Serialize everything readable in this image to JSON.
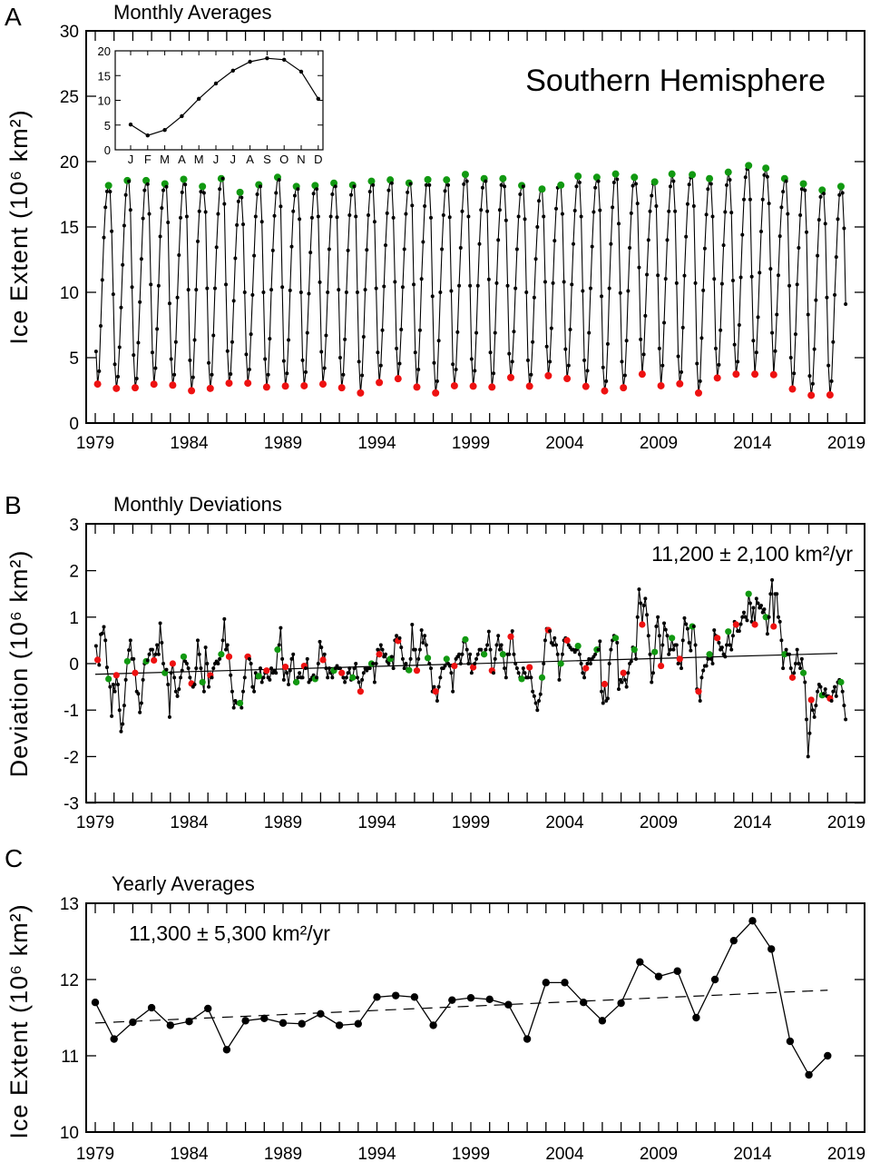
{
  "colors": {
    "line": "#000000",
    "max_marker": "#119911",
    "min_marker": "#ee1111"
  },
  "chart_data": [
    {
      "id": "A",
      "type": "line",
      "panel_label": "A",
      "title": "Monthly Averages",
      "annotation": "Southern Hemisphere",
      "ylabel": "Ice Extent (10⁶ km²)",
      "ylim": [
        0,
        30
      ],
      "yticks": [
        "0",
        "5",
        "10",
        "15",
        "20",
        "25",
        "30"
      ],
      "xlim": [
        1979,
        2019
      ],
      "xticks": [
        "1979",
        "1984",
        "1989",
        "1994",
        "1999",
        "2004",
        "2009",
        "2014",
        "2019"
      ],
      "markers": "yearly maximum green, yearly minimum red",
      "values_are": "climatology + monthly deviation"
    },
    {
      "id": "A-inset",
      "type": "line",
      "categories": [
        "J",
        "F",
        "M",
        "A",
        "M",
        "J",
        "J",
        "A",
        "S",
        "O",
        "N",
        "D"
      ],
      "values": [
        5.1,
        2.9,
        4.0,
        6.8,
        10.3,
        13.4,
        16.0,
        17.8,
        18.5,
        18.2,
        15.8,
        10.3
      ],
      "ylim": [
        0,
        20
      ],
      "yticks": [
        "0",
        "5",
        "10",
        "15",
        "20"
      ]
    },
    {
      "id": "B",
      "type": "line",
      "panel_label": "B",
      "title": "Monthly Deviations",
      "annotation": "11,200 ± 2,100 km²/yr",
      "ylabel": "Deviation (10⁶ km²)",
      "ylim": [
        -3,
        3
      ],
      "yticks": [
        "-3",
        "-2",
        "-1",
        "0",
        "1",
        "2",
        "3"
      ],
      "xticks": [
        "1979",
        "1984",
        "1989",
        "1994",
        "1999",
        "2004",
        "2009",
        "2014",
        "2019"
      ],
      "trend": {
        "start": [
          1979,
          -0.23
        ],
        "end": [
          2019,
          0.22
        ]
      },
      "years": [
        1979,
        1980,
        1981,
        1982,
        1983,
        1984,
        1985,
        1986,
        1987,
        1988,
        1989,
        1990,
        1991,
        1992,
        1993,
        1994,
        1995,
        1996,
        1997,
        1998,
        1999,
        2000,
        2001,
        2002,
        2003,
        2004,
        2005,
        2006,
        2007,
        2008,
        2009,
        2010,
        2011,
        2012,
        2013,
        2014,
        2015,
        2016,
        2017,
        2018
      ],
      "monthly_deviations": [
        [
          0.38,
          0.08,
          -0.03,
          0.63,
          0.65,
          0.79,
          0.5,
          -0.08,
          -0.33,
          -0.5,
          -1.13,
          -0.45
        ],
        [
          -0.6,
          -0.25,
          -0.45,
          -1.0,
          -1.46,
          -1.3,
          -0.9,
          -0.35,
          0.05,
          0.29,
          0.5,
          0.1
        ],
        [
          0.1,
          -0.2,
          -0.6,
          -0.65,
          -1.05,
          -0.85,
          -0.35,
          0.0,
          0.05,
          0.07,
          0.2,
          0.3
        ],
        [
          0.3,
          0.07,
          0.2,
          0.4,
          0.2,
          0.87,
          0.45,
          0.0,
          -0.2,
          -0.13,
          -0.45,
          -1.15
        ],
        [
          -0.2,
          0.0,
          -0.3,
          -0.6,
          -0.7,
          -0.55,
          -0.3,
          -0.15,
          0.15,
          0.05,
          0.0,
          -0.1
        ],
        [
          -0.3,
          -0.43,
          -0.5,
          -0.45,
          -0.1,
          0.5,
          0.2,
          -0.1,
          -0.4,
          -0.6,
          0.35,
          0.0
        ],
        [
          -0.5,
          -0.25,
          -0.3,
          -0.1,
          0.0,
          0.05,
          0.0,
          0.1,
          0.2,
          0.5,
          0.96,
          0.3
        ],
        [
          0.4,
          0.15,
          -0.25,
          -0.6,
          -0.95,
          -0.8,
          -0.85,
          -0.85,
          -0.85,
          -0.95,
          -0.6,
          -0.3
        ],
        [
          0.15,
          0.15,
          0.1,
          0.0,
          -0.5,
          -0.6,
          -0.2,
          -0.3,
          -0.27,
          -0.1,
          -0.4,
          -0.3
        ],
        [
          -0.2,
          -0.15,
          -0.3,
          -0.35,
          -0.1,
          -0.2,
          -0.15,
          -0.2,
          0.3,
          0.4,
          0.77,
          0.1
        ],
        [
          -0.35,
          -0.07,
          -0.2,
          -0.45,
          -0.15,
          0.1,
          0.2,
          -0.4,
          -0.4,
          -0.3,
          -0.2,
          -0.3
        ],
        [
          -0.3,
          -0.05,
          -0.1,
          0.1,
          -0.4,
          -0.35,
          -0.3,
          -0.25,
          -0.33,
          -0.3,
          0.0,
          0.47
        ],
        [
          0.35,
          0.08,
          0.2,
          -0.1,
          -0.3,
          -0.1,
          -0.2,
          -0.3,
          -0.15,
          -0.1,
          -0.05,
          -0.1
        ],
        [
          -0.1,
          -0.2,
          -0.3,
          -0.4,
          -0.3,
          -0.2,
          -0.1,
          -0.35,
          -0.3,
          -0.1,
          0.0,
          -0.3
        ],
        [
          -0.4,
          -0.6,
          -0.35,
          -0.2,
          -0.1,
          -0.15,
          -0.1,
          -0.1,
          0.0,
          0.0,
          -0.4,
          0.0
        ],
        [
          0.3,
          0.2,
          0.4,
          0.3,
          0.15,
          0.2,
          0.05,
          0.0,
          0.1,
          0.15,
          -0.1,
          0.5
        ],
        [
          0.6,
          0.49,
          0.55,
          0.35,
          0.1,
          -0.1,
          0.0,
          -0.15,
          -0.14,
          0.1,
          0.84,
          0.3
        ],
        [
          0.3,
          -0.15,
          0.1,
          0.3,
          0.72,
          0.45,
          0.6,
          0.4,
          0.12,
          0.0,
          -0.1,
          -0.6
        ],
        [
          -0.5,
          -0.6,
          -0.8,
          -0.5,
          -0.3,
          -0.1,
          -0.1,
          -0.05,
          0.1,
          0.0,
          -0.05,
          -0.2
        ],
        [
          -0.6,
          -0.05,
          0.1,
          0.15,
          0.2,
          0.0,
          0.2,
          0.47,
          0.52,
          0.3,
          0.0,
          0.2
        ],
        [
          -0.2,
          -0.08,
          0.0,
          0.1,
          0.2,
          0.3,
          0.3,
          0.2,
          0.2,
          0.3,
          0.4,
          0.69
        ],
        [
          0.3,
          -0.15,
          -0.2,
          0.1,
          0.4,
          0.6,
          0.3,
          0.4,
          0.2,
          -0.1,
          -0.3,
          0.2
        ],
        [
          0.2,
          0.58,
          0.7,
          0.2,
          0.0,
          -0.1,
          -0.2,
          -0.3,
          -0.33,
          -0.1,
          -0.2,
          -0.3
        ],
        [
          -0.3,
          -0.08,
          -0.3,
          -0.6,
          -0.7,
          -0.85,
          -1.0,
          -0.8,
          -0.66,
          -0.3,
          0.0,
          0.5
        ],
        [
          0.75,
          0.72,
          0.7,
          0.45,
          0.4,
          0.55,
          0.4,
          0.2,
          -0.35,
          0.0,
          0.2,
          0.5
        ],
        [
          0.55,
          0.5,
          0.4,
          0.35,
          0.3,
          0.3,
          0.25,
          0.3,
          0.38,
          0.2,
          0.0,
          -0.2
        ],
        [
          -0.3,
          -0.1,
          0.0,
          0.1,
          0.0,
          0.1,
          0.15,
          0.2,
          0.3,
          0.3,
          0.48,
          -0.6
        ],
        [
          -0.85,
          -0.44,
          -0.8,
          -0.75,
          0.0,
          0.3,
          0.5,
          0.6,
          0.55,
          0.45,
          -0.55,
          -0.35
        ],
        [
          -0.4,
          -0.2,
          -0.35,
          -0.5,
          -0.2,
          0.0,
          0.05,
          0.35,
          0.3,
          0.1,
          1.0,
          1.6
        ],
        [
          1.3,
          0.84,
          1.25,
          1.4,
          1.05,
          0.6,
          0.2,
          -0.4,
          -0.2,
          0.25,
          0.8,
          1.0
        ],
        [
          0.6,
          -0.05,
          0.4,
          0.87,
          0.73,
          0.6,
          0.2,
          0.3,
          0.55,
          0.3,
          0.4,
          0.4
        ],
        [
          0.0,
          0.1,
          -0.1,
          0.5,
          0.98,
          0.85,
          0.75,
          0.45,
          0.28,
          0.8,
          0.8,
          0.4
        ],
        [
          -0.55,
          -0.6,
          -0.8,
          -0.3,
          -0.15,
          -0.05,
          -0.05,
          0.1,
          0.2,
          0.1,
          0.0,
          0.72
        ],
        [
          0.6,
          0.55,
          0.45,
          0.3,
          0.35,
          0.2,
          0.15,
          0.4,
          0.69,
          0.4,
          0.3,
          0.6
        ],
        [
          0.9,
          0.84,
          0.7,
          0.7,
          0.85,
          1.0,
          1.1,
          1.0,
          0.93,
          1.5,
          1.3,
          0.9
        ],
        [
          1.2,
          0.84,
          1.4,
          1.3,
          1.2,
          1.25,
          1.1,
          1.17,
          1.0,
          0.64,
          1.0,
          1.5
        ],
        [
          1.8,
          0.8,
          1.5,
          1.5,
          1.0,
          0.9,
          0.5,
          -0.1,
          0.2,
          0.3,
          0.2,
          0.2
        ],
        [
          -0.1,
          -0.3,
          -0.2,
          0.0,
          0.3,
          0.0,
          -0.1,
          0.1,
          -0.2,
          -0.4,
          -1.2,
          -2.0
        ],
        [
          -1.5,
          -0.78,
          -1.0,
          -1.15,
          -0.9,
          -0.6,
          -0.45,
          -0.5,
          -0.68,
          -0.65,
          -0.55,
          -0.7
        ],
        [
          -0.7,
          -0.75,
          -0.8,
          -0.6,
          -0.5,
          -0.7,
          -0.4,
          -0.35,
          -0.4,
          -0.6,
          -0.9,
          -1.2
        ]
      ]
    },
    {
      "id": "C",
      "type": "line",
      "panel_label": "C",
      "title": "Yearly Averages",
      "annotation": "11,300 ± 5,300 km²/yr",
      "ylabel": "Ice Extent (10⁶ km²)",
      "ylim": [
        10,
        13
      ],
      "yticks": [
        "10",
        "11",
        "12",
        "13"
      ],
      "xticks": [
        "1979",
        "1984",
        "1989",
        "1994",
        "1999",
        "2004",
        "2009",
        "2014",
        "2019"
      ],
      "trend": {
        "start": [
          1979,
          11.43
        ],
        "end": [
          2018,
          11.86
        ],
        "style": "dashed"
      },
      "x": [
        1979,
        1980,
        1981,
        1982,
        1983,
        1984,
        1985,
        1986,
        1987,
        1988,
        1989,
        1990,
        1991,
        1992,
        1993,
        1994,
        1995,
        1996,
        1997,
        1998,
        1999,
        2000,
        2001,
        2002,
        2003,
        2004,
        2005,
        2006,
        2007,
        2008,
        2009,
        2010,
        2011,
        2012,
        2013,
        2014,
        2015,
        2016,
        2017,
        2018
      ],
      "values": [
        11.7,
        11.22,
        11.44,
        11.63,
        11.4,
        11.45,
        11.62,
        11.08,
        11.46,
        11.49,
        11.43,
        11.42,
        11.55,
        11.4,
        11.42,
        11.77,
        11.79,
        11.77,
        11.4,
        11.73,
        11.76,
        11.74,
        11.67,
        11.22,
        11.96,
        11.96,
        11.7,
        11.46,
        11.69,
        12.23,
        12.04,
        12.11,
        11.5,
        12.0,
        12.51,
        12.77,
        12.4,
        11.19,
        10.75,
        11.0
      ]
    }
  ]
}
